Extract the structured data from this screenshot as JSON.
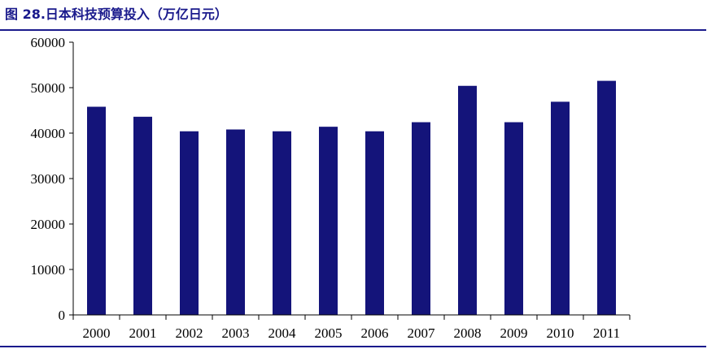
{
  "figure_title": "图 28.日本科技预算投入（万亿日元）",
  "chart_data": {
    "type": "bar",
    "title": "图 28.日本科技预算投入（万亿日元）",
    "categories": [
      "2000",
      "2001",
      "2002",
      "2003",
      "2004",
      "2005",
      "2006",
      "2007",
      "2008",
      "2009",
      "2010",
      "2011"
    ],
    "values": [
      45800,
      43600,
      40400,
      40800,
      40400,
      41400,
      40400,
      42400,
      50400,
      42400,
      46900,
      51500
    ],
    "ylim": [
      0,
      60000
    ],
    "yticks": [
      0,
      10000,
      20000,
      30000,
      40000,
      50000,
      60000
    ],
    "ytick_labels": [
      "0",
      "10000",
      "20000",
      "30000",
      "40000",
      "50000",
      "60000"
    ],
    "xlabel": "",
    "ylabel": "",
    "bar_color": "#14147a",
    "grid": false,
    "legend": "none"
  },
  "colors": {
    "accent": "#1a1a8c",
    "axis": "#000000"
  }
}
